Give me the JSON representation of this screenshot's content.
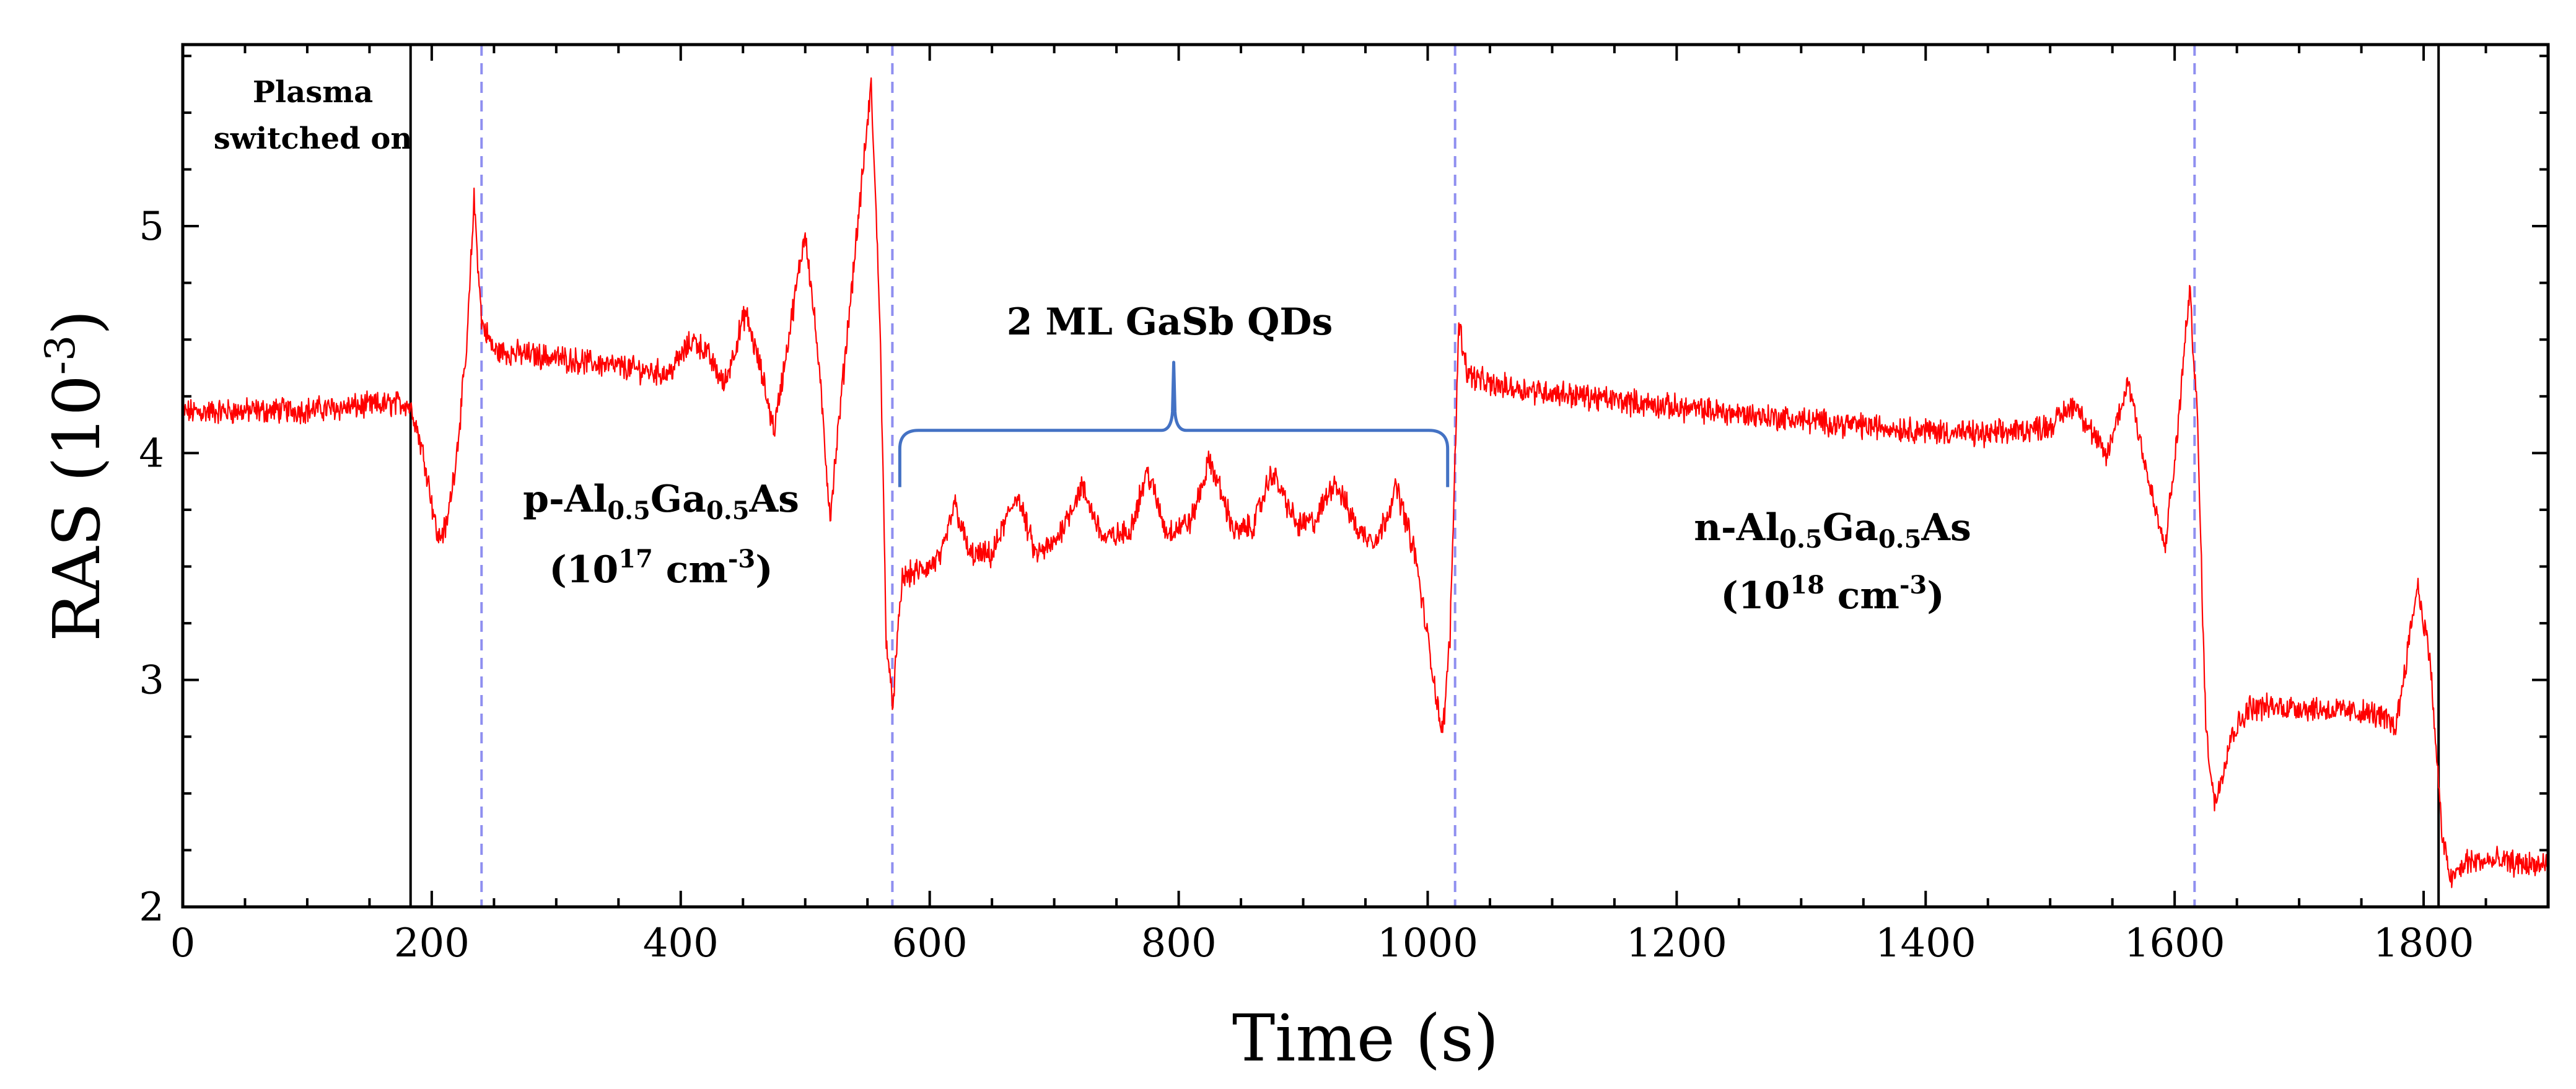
{
  "chart_data": {
    "type": "line",
    "title": "",
    "xlabel": "Time (s)",
    "ylabel_main": "RAS (10",
    "ylabel_exp": "-3",
    "ylabel_close": ")",
    "xlim": [
      0,
      1900
    ],
    "ylim": [
      2.0,
      5.8
    ],
    "xticks": [
      0,
      200,
      400,
      600,
      800,
      1000,
      1200,
      1400,
      1600,
      1800
    ],
    "yticks": [
      2,
      3,
      4,
      5
    ],
    "grid": false,
    "series": [
      {
        "color": "#ff0000",
        "noise": 0.045,
        "points": [
          [
            0,
            4.18
          ],
          [
            100,
            4.19
          ],
          [
            180,
            4.22
          ],
          [
            185,
            4.18
          ],
          [
            195,
            3.95
          ],
          [
            205,
            3.62
          ],
          [
            212,
            3.68
          ],
          [
            220,
            4.0
          ],
          [
            228,
            4.45
          ],
          [
            234,
            5.12
          ],
          [
            240,
            4.58
          ],
          [
            250,
            4.45
          ],
          [
            300,
            4.42
          ],
          [
            350,
            4.38
          ],
          [
            390,
            4.35
          ],
          [
            410,
            4.5
          ],
          [
            420,
            4.45
          ],
          [
            435,
            4.3
          ],
          [
            452,
            4.62
          ],
          [
            465,
            4.35
          ],
          [
            475,
            4.1
          ],
          [
            485,
            4.45
          ],
          [
            500,
            4.98
          ],
          [
            510,
            4.45
          ],
          [
            520,
            3.72
          ],
          [
            535,
            4.6
          ],
          [
            553,
            5.62
          ],
          [
            560,
            4.6
          ],
          [
            565,
            3.2
          ],
          [
            570,
            2.88
          ],
          [
            578,
            3.45
          ],
          [
            600,
            3.5
          ],
          [
            610,
            3.55
          ],
          [
            620,
            3.78
          ],
          [
            632,
            3.55
          ],
          [
            650,
            3.55
          ],
          [
            670,
            3.82
          ],
          [
            685,
            3.55
          ],
          [
            700,
            3.6
          ],
          [
            722,
            3.85
          ],
          [
            740,
            3.62
          ],
          [
            760,
            3.65
          ],
          [
            775,
            3.92
          ],
          [
            790,
            3.65
          ],
          [
            810,
            3.7
          ],
          [
            825,
            3.97
          ],
          [
            845,
            3.65
          ],
          [
            860,
            3.68
          ],
          [
            875,
            3.92
          ],
          [
            895,
            3.68
          ],
          [
            910,
            3.7
          ],
          [
            925,
            3.88
          ],
          [
            945,
            3.65
          ],
          [
            960,
            3.62
          ],
          [
            975,
            3.85
          ],
          [
            990,
            3.55
          ],
          [
            1005,
            3.0
          ],
          [
            1012,
            2.75
          ],
          [
            1018,
            3.2
          ],
          [
            1025,
            4.58
          ],
          [
            1032,
            4.35
          ],
          [
            1050,
            4.3
          ],
          [
            1200,
            4.2
          ],
          [
            1350,
            4.12
          ],
          [
            1450,
            4.08
          ],
          [
            1500,
            4.12
          ],
          [
            1520,
            4.22
          ],
          [
            1545,
            3.98
          ],
          [
            1563,
            4.32
          ],
          [
            1580,
            3.85
          ],
          [
            1592,
            3.58
          ],
          [
            1600,
            3.95
          ],
          [
            1612,
            4.72
          ],
          [
            1618,
            4.2
          ],
          [
            1625,
            2.8
          ],
          [
            1632,
            2.45
          ],
          [
            1645,
            2.75
          ],
          [
            1660,
            2.88
          ],
          [
            1700,
            2.88
          ],
          [
            1760,
            2.85
          ],
          [
            1778,
            2.8
          ],
          [
            1795,
            3.42
          ],
          [
            1805,
            3.1
          ],
          [
            1815,
            2.3
          ],
          [
            1822,
            2.12
          ],
          [
            1835,
            2.2
          ],
          [
            1860,
            2.2
          ],
          [
            1900,
            2.18
          ]
        ]
      }
    ],
    "solid_lines": [
      183,
      1812
    ],
    "dashed_lines": [
      240,
      570,
      1022,
      1616
    ],
    "annotations": {
      "plasma_line1": "Plasma",
      "plasma_line2": "switched on",
      "qd_label": "2 ML GaSb QDs",
      "p_layer": {
        "p1": "p-Al",
        "s1": "0.5",
        "p2": "Ga",
        "s2": "0.5",
        "p3": "As"
      },
      "p_doping": {
        "p1": "(10",
        "e1": "17",
        "p2": " cm",
        "e2": "-3",
        "p3": ")"
      },
      "n_layer": {
        "p1": "n-Al",
        "s1": "0.5",
        "p2": "Ga",
        "s2": "0.5",
        "p3": "As"
      },
      "n_doping": {
        "p1": "(10",
        "e1": "18",
        "p2": " cm",
        "e2": "-3",
        "p3": ")"
      }
    },
    "colors": {
      "trace": "#ff0000",
      "dashed": "#8f8ff0",
      "brace": "#4472c4",
      "axis": "#000000"
    }
  }
}
